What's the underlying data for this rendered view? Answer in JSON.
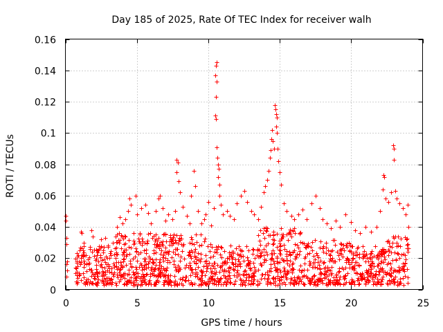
{
  "chart_data": {
    "type": "scatter",
    "title": "Day 185 of 2025, Rate Of TEC Index for receiver walh",
    "xlabel": "GPS time / hours",
    "ylabel": "ROTI / TECUs",
    "xlim": [
      0,
      25
    ],
    "ylim": [
      0,
      0.16
    ],
    "xticks": [
      0,
      5,
      10,
      15,
      20,
      25
    ],
    "xtick_labels": [
      "0",
      "5",
      "10",
      "15",
      "20",
      "25"
    ],
    "yticks": [
      0,
      0.02,
      0.04,
      0.06,
      0.08,
      0.1,
      0.12,
      0.14,
      0.16
    ],
    "ytick_labels": [
      "0",
      "0.02",
      "0.04",
      "0.06",
      "0.08",
      "0.1",
      "0.12",
      "0.14",
      "0.16"
    ],
    "grid": true,
    "marker": "+",
    "color": "#ff0000",
    "series": [
      {
        "name": "ROTI",
        "points": [
          [
            0.0,
            0.047
          ],
          [
            0.0,
            0.044
          ],
          [
            0.05,
            0.033
          ],
          [
            0.05,
            0.029
          ],
          [
            0.1,
            0.018
          ],
          [
            0.1,
            0.012
          ],
          [
            0.05,
            0.008
          ],
          [
            0.05,
            0.016
          ],
          [
            0.7,
            0.014
          ],
          [
            0.8,
            0.018
          ],
          [
            0.9,
            0.022
          ],
          [
            1.0,
            0.025
          ],
          [
            1.1,
            0.037
          ],
          [
            1.15,
            0.036
          ],
          [
            1.3,
            0.03
          ],
          [
            1.5,
            0.016
          ],
          [
            1.7,
            0.026
          ],
          [
            1.8,
            0.038
          ],
          [
            1.9,
            0.034
          ],
          [
            2.2,
            0.022
          ],
          [
            2.5,
            0.032
          ],
          [
            2.8,
            0.033
          ],
          [
            3.0,
            0.028
          ],
          [
            3.3,
            0.03
          ],
          [
            3.5,
            0.034
          ],
          [
            3.6,
            0.04
          ],
          [
            3.8,
            0.046
          ],
          [
            4.0,
            0.042
          ],
          [
            4.2,
            0.045
          ],
          [
            4.4,
            0.05
          ],
          [
            4.5,
            0.058
          ],
          [
            4.6,
            0.054
          ],
          [
            4.9,
            0.06
          ],
          [
            5.0,
            0.048
          ],
          [
            5.3,
            0.052
          ],
          [
            5.6,
            0.054
          ],
          [
            5.8,
            0.049
          ],
          [
            6.0,
            0.042
          ],
          [
            6.3,
            0.05
          ],
          [
            6.5,
            0.058
          ],
          [
            6.6,
            0.06
          ],
          [
            6.8,
            0.052
          ],
          [
            7.0,
            0.044
          ],
          [
            7.2,
            0.048
          ],
          [
            7.5,
            0.045
          ],
          [
            7.7,
            0.05
          ],
          [
            7.8,
            0.083
          ],
          [
            7.85,
            0.081
          ],
          [
            7.8,
            0.075
          ],
          [
            7.9,
            0.069
          ],
          [
            8.0,
            0.062
          ],
          [
            8.2,
            0.053
          ],
          [
            8.5,
            0.047
          ],
          [
            8.7,
            0.042
          ],
          [
            8.8,
            0.06
          ],
          [
            9.0,
            0.076
          ],
          [
            9.1,
            0.066
          ],
          [
            9.3,
            0.05
          ],
          [
            9.5,
            0.042
          ],
          [
            9.7,
            0.045
          ],
          [
            9.8,
            0.048
          ],
          [
            10.0,
            0.056
          ],
          [
            10.2,
            0.041
          ],
          [
            10.4,
            0.052
          ],
          [
            10.55,
            0.143
          ],
          [
            10.6,
            0.145
          ],
          [
            10.5,
            0.137
          ],
          [
            10.6,
            0.133
          ],
          [
            10.55,
            0.123
          ],
          [
            10.5,
            0.111
          ],
          [
            10.55,
            0.109
          ],
          [
            10.6,
            0.091
          ],
          [
            10.65,
            0.084
          ],
          [
            10.7,
            0.08
          ],
          [
            10.75,
            0.077
          ],
          [
            10.7,
            0.072
          ],
          [
            10.8,
            0.067
          ],
          [
            10.8,
            0.06
          ],
          [
            10.9,
            0.054
          ],
          [
            11.0,
            0.048
          ],
          [
            11.3,
            0.05
          ],
          [
            11.5,
            0.047
          ],
          [
            11.8,
            0.045
          ],
          [
            12.0,
            0.055
          ],
          [
            12.3,
            0.06
          ],
          [
            12.5,
            0.063
          ],
          [
            12.7,
            0.056
          ],
          [
            13.0,
            0.05
          ],
          [
            13.2,
            0.048
          ],
          [
            13.5,
            0.045
          ],
          [
            13.7,
            0.053
          ],
          [
            13.9,
            0.062
          ],
          [
            14.0,
            0.066
          ],
          [
            14.1,
            0.07
          ],
          [
            14.2,
            0.076
          ],
          [
            14.3,
            0.084
          ],
          [
            14.35,
            0.089
          ],
          [
            14.4,
            0.096
          ],
          [
            14.45,
            0.102
          ],
          [
            14.5,
            0.095
          ],
          [
            14.6,
            0.09
          ],
          [
            14.65,
            0.118
          ],
          [
            14.7,
            0.115
          ],
          [
            14.75,
            0.112
          ],
          [
            14.8,
            0.11
          ],
          [
            14.75,
            0.104
          ],
          [
            14.8,
            0.1
          ],
          [
            14.85,
            0.09
          ],
          [
            14.9,
            0.082
          ],
          [
            15.0,
            0.075
          ],
          [
            15.1,
            0.067
          ],
          [
            15.3,
            0.055
          ],
          [
            15.5,
            0.05
          ],
          [
            15.8,
            0.047
          ],
          [
            16.0,
            0.045
          ],
          [
            16.3,
            0.048
          ],
          [
            16.6,
            0.051
          ],
          [
            16.9,
            0.045
          ],
          [
            17.2,
            0.055
          ],
          [
            17.5,
            0.06
          ],
          [
            17.8,
            0.052
          ],
          [
            18.0,
            0.045
          ],
          [
            18.3,
            0.042
          ],
          [
            18.6,
            0.039
          ],
          [
            18.9,
            0.044
          ],
          [
            19.2,
            0.04
          ],
          [
            19.6,
            0.048
          ],
          [
            20.0,
            0.043
          ],
          [
            20.3,
            0.038
          ],
          [
            20.6,
            0.036
          ],
          [
            21.0,
            0.04
          ],
          [
            21.4,
            0.037
          ],
          [
            21.8,
            0.04
          ],
          [
            22.0,
            0.05
          ],
          [
            22.2,
            0.064
          ],
          [
            22.25,
            0.073
          ],
          [
            22.3,
            0.072
          ],
          [
            22.4,
            0.058
          ],
          [
            22.6,
            0.056
          ],
          [
            22.8,
            0.062
          ],
          [
            22.95,
            0.092
          ],
          [
            23.0,
            0.09
          ],
          [
            23.0,
            0.083
          ],
          [
            23.1,
            0.063
          ],
          [
            23.2,
            0.058
          ],
          [
            23.4,
            0.055
          ],
          [
            23.6,
            0.052
          ],
          [
            23.8,
            0.048
          ],
          [
            23.95,
            0.054
          ],
          [
            24.0,
            0.04
          ]
        ]
      }
    ],
    "dense_band": {
      "description": "background noise band of ROTI values",
      "x_range": [
        0.7,
        24.0
      ],
      "y_range": [
        0.003,
        0.04
      ]
    }
  }
}
